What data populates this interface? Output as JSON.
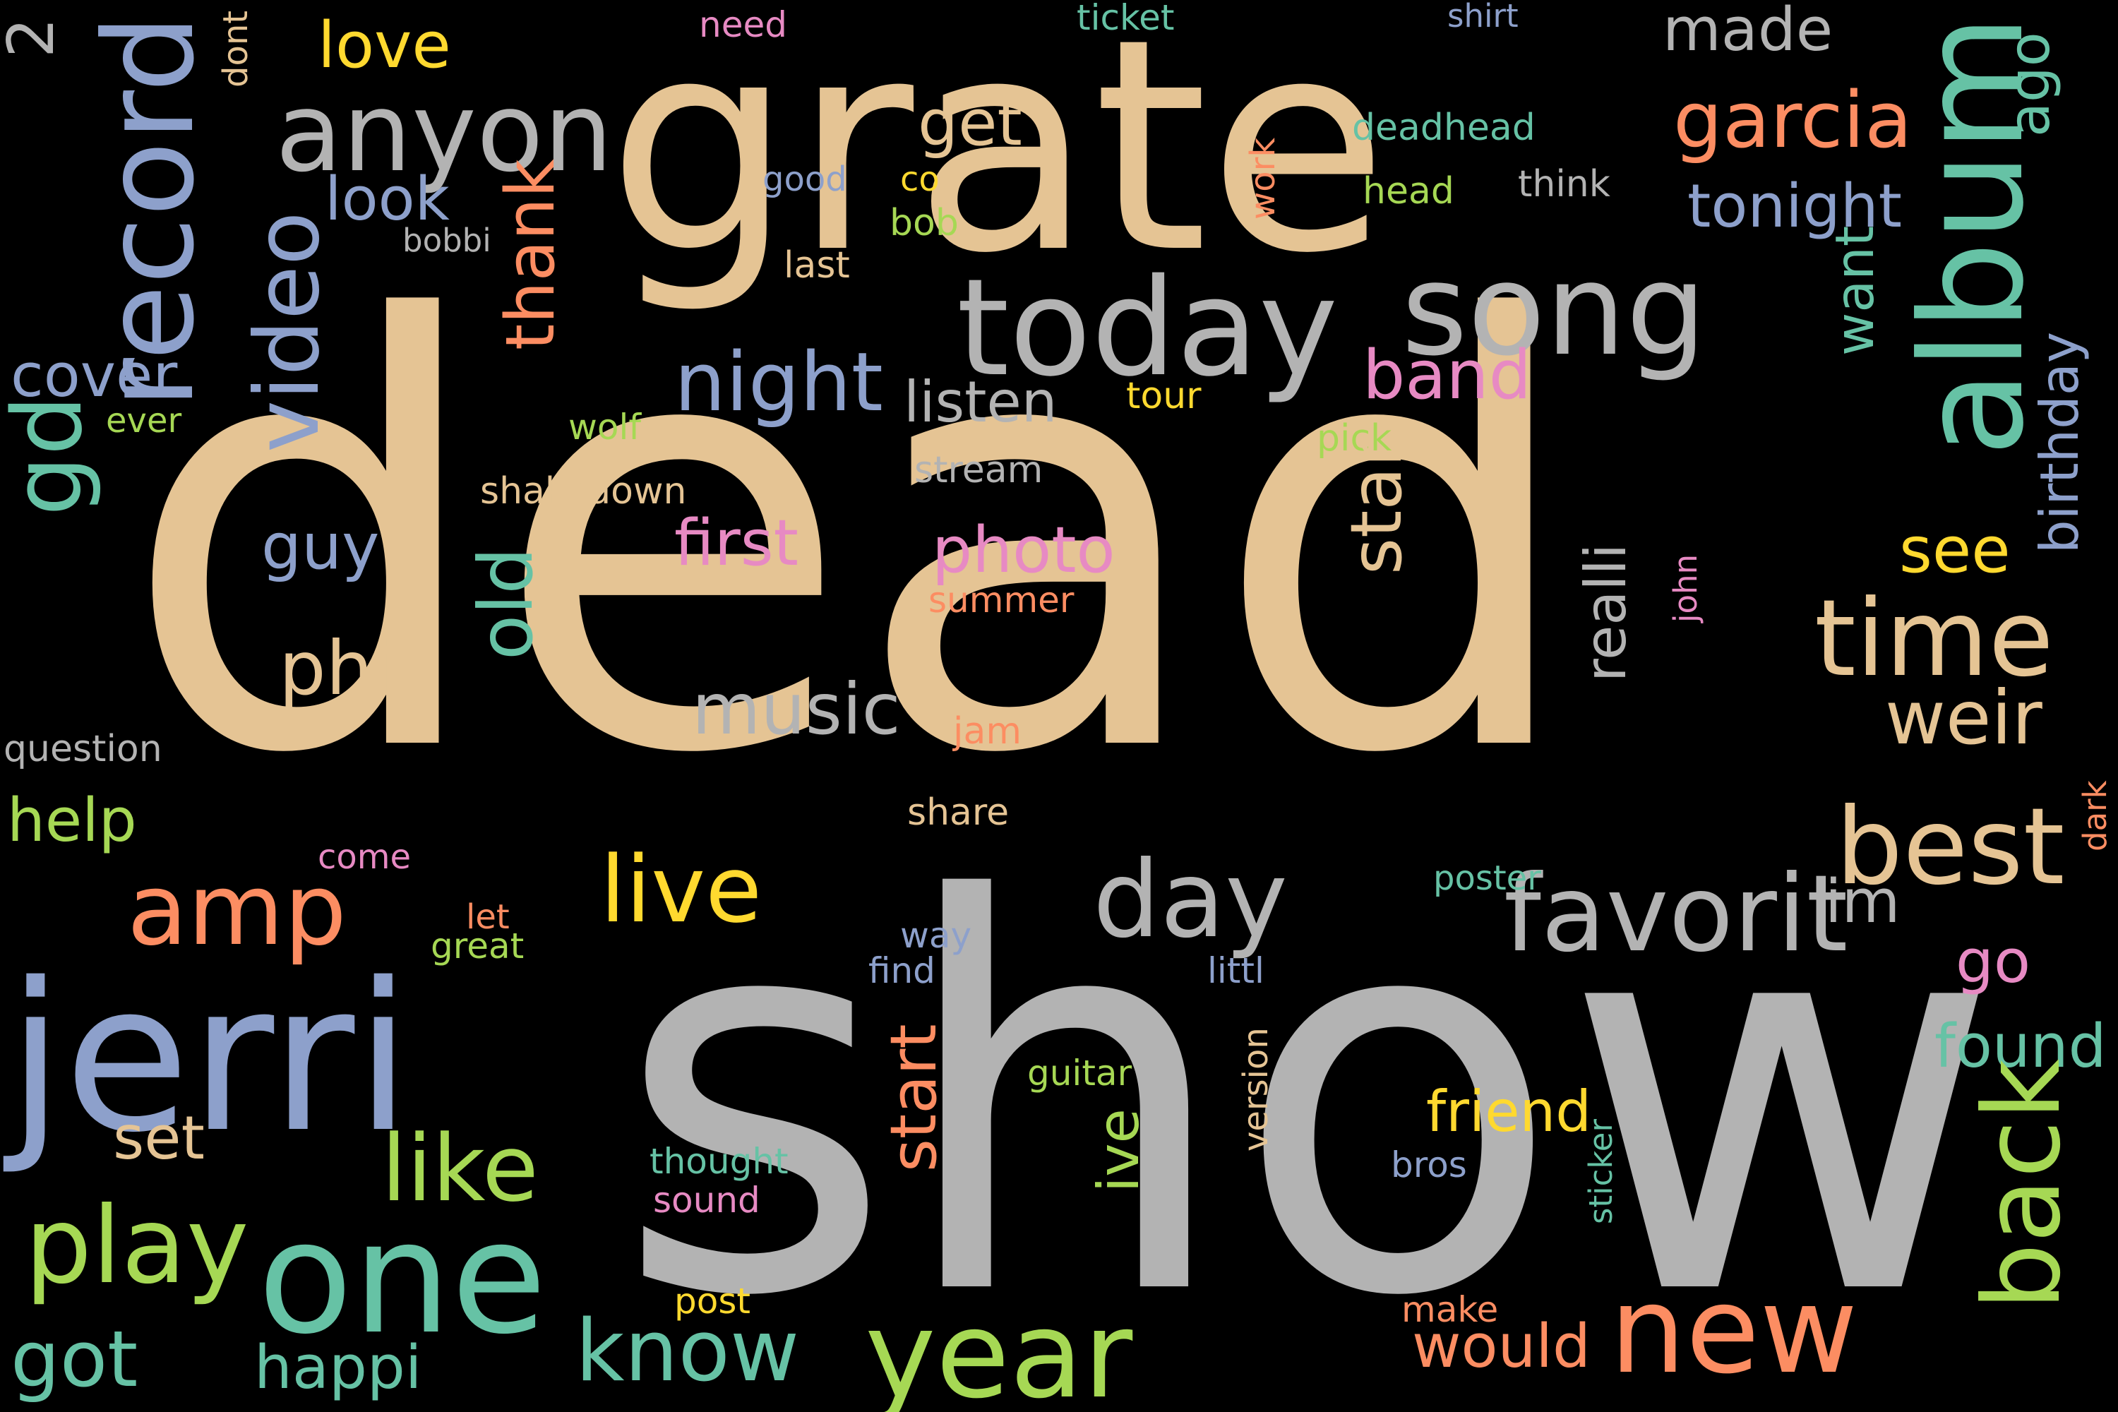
{
  "colors": {
    "background": "#000000",
    "tan": "#e5c494",
    "gray": "#b3b3b3",
    "blue": "#8da0cb",
    "green": "#a6d854",
    "teal": "#66c2a5",
    "orange": "#fc8d62",
    "pink": "#e78ac3",
    "yellow": "#ffd92f"
  },
  "words": [
    {
      "text": "dead",
      "color": "tan"
    },
    {
      "text": "show",
      "color": "gray"
    },
    {
      "text": "grate",
      "color": "tan"
    },
    {
      "text": "jerri",
      "color": "blue"
    },
    {
      "text": "today",
      "color": "gray"
    },
    {
      "text": "song",
      "color": "gray"
    },
    {
      "text": "anyon",
      "color": "gray"
    },
    {
      "text": "one",
      "color": "teal"
    },
    {
      "text": "year",
      "color": "green"
    },
    {
      "text": "day",
      "color": "gray"
    },
    {
      "text": "favorit",
      "color": "gray"
    },
    {
      "text": "time",
      "color": "tan"
    },
    {
      "text": "best",
      "color": "tan"
    },
    {
      "text": "new",
      "color": "orange"
    },
    {
      "text": "amp",
      "color": "orange"
    },
    {
      "text": "play",
      "color": "green"
    },
    {
      "text": "like",
      "color": "green"
    },
    {
      "text": "live",
      "color": "yellow"
    },
    {
      "text": "got",
      "color": "teal"
    },
    {
      "text": "know",
      "color": "teal"
    },
    {
      "text": "night",
      "color": "blue"
    },
    {
      "text": "band",
      "color": "pink"
    },
    {
      "text": "love",
      "color": "yellow"
    },
    {
      "text": "look",
      "color": "blue"
    },
    {
      "text": "get",
      "color": "tan"
    },
    {
      "text": "made",
      "color": "gray"
    },
    {
      "text": "garcia",
      "color": "orange"
    },
    {
      "text": "tonight",
      "color": "blue"
    },
    {
      "text": "listen",
      "color": "gray"
    },
    {
      "text": "photo",
      "color": "pink"
    },
    {
      "text": "first",
      "color": "pink"
    },
    {
      "text": "music",
      "color": "gray"
    },
    {
      "text": "phil",
      "color": "tan"
    },
    {
      "text": "guy",
      "color": "blue"
    },
    {
      "text": "cover",
      "color": "blue"
    },
    {
      "text": "help",
      "color": "green"
    },
    {
      "text": "set",
      "color": "tan"
    },
    {
      "text": "happi",
      "color": "teal"
    },
    {
      "text": "would",
      "color": "orange"
    },
    {
      "text": "friend",
      "color": "yellow"
    },
    {
      "text": "see",
      "color": "yellow"
    },
    {
      "text": "weir",
      "color": "tan"
    },
    {
      "text": "im",
      "color": "gray"
    },
    {
      "text": "go",
      "color": "pink"
    },
    {
      "text": "found",
      "color": "teal"
    },
    {
      "text": "need",
      "color": "pink"
    },
    {
      "text": "ticket",
      "color": "teal"
    },
    {
      "text": "shirt",
      "color": "blue"
    },
    {
      "text": "good",
      "color": "blue"
    },
    {
      "text": "co",
      "color": "yellow"
    },
    {
      "text": "bob",
      "color": "green"
    },
    {
      "text": "bobbi",
      "color": "gray"
    },
    {
      "text": "last",
      "color": "tan"
    },
    {
      "text": "deadhead",
      "color": "teal"
    },
    {
      "text": "head",
      "color": "green"
    },
    {
      "text": "think",
      "color": "gray"
    },
    {
      "text": "tour",
      "color": "yellow"
    },
    {
      "text": "pick",
      "color": "green"
    },
    {
      "text": "ever",
      "color": "green"
    },
    {
      "text": "wolf",
      "color": "green"
    },
    {
      "text": "shakedown",
      "color": "tan"
    },
    {
      "text": "stream",
      "color": "gray"
    },
    {
      "text": "summer",
      "color": "orange"
    },
    {
      "text": "question",
      "color": "gray"
    },
    {
      "text": "jam",
      "color": "orange"
    },
    {
      "text": "share",
      "color": "tan"
    },
    {
      "text": "come",
      "color": "pink"
    },
    {
      "text": "let",
      "color": "orange"
    },
    {
      "text": "great",
      "color": "green"
    },
    {
      "text": "way",
      "color": "blue"
    },
    {
      "text": "find",
      "color": "blue"
    },
    {
      "text": "littl",
      "color": "blue"
    },
    {
      "text": "poster",
      "color": "teal"
    },
    {
      "text": "guitar",
      "color": "green"
    },
    {
      "text": "thought",
      "color": "teal"
    },
    {
      "text": "sound",
      "color": "pink"
    },
    {
      "text": "bros",
      "color": "blue"
    },
    {
      "text": "post",
      "color": "yellow"
    },
    {
      "text": "make",
      "color": "orange"
    },
    {
      "text": "album",
      "color": "teal"
    },
    {
      "text": "record",
      "color": "blue"
    },
    {
      "text": "back",
      "color": "green"
    },
    {
      "text": "gd",
      "color": "teal"
    },
    {
      "text": "video",
      "color": "blue"
    },
    {
      "text": "star",
      "color": "tan"
    },
    {
      "text": "old",
      "color": "teal"
    },
    {
      "text": "thank",
      "color": "orange"
    },
    {
      "text": "2",
      "color": "gray"
    },
    {
      "text": "ago",
      "color": "teal"
    },
    {
      "text": "start",
      "color": "orange"
    },
    {
      "text": "ive",
      "color": "green"
    },
    {
      "text": "realli",
      "color": "gray"
    },
    {
      "text": "want",
      "color": "teal"
    },
    {
      "text": "birthday",
      "color": "blue"
    },
    {
      "text": "dont",
      "color": "tan"
    },
    {
      "text": "work",
      "color": "orange"
    },
    {
      "text": "john",
      "color": "pink"
    },
    {
      "text": "dark",
      "color": "orange"
    },
    {
      "text": "version",
      "color": "tan"
    },
    {
      "text": "sticker",
      "color": "teal"
    }
  ]
}
